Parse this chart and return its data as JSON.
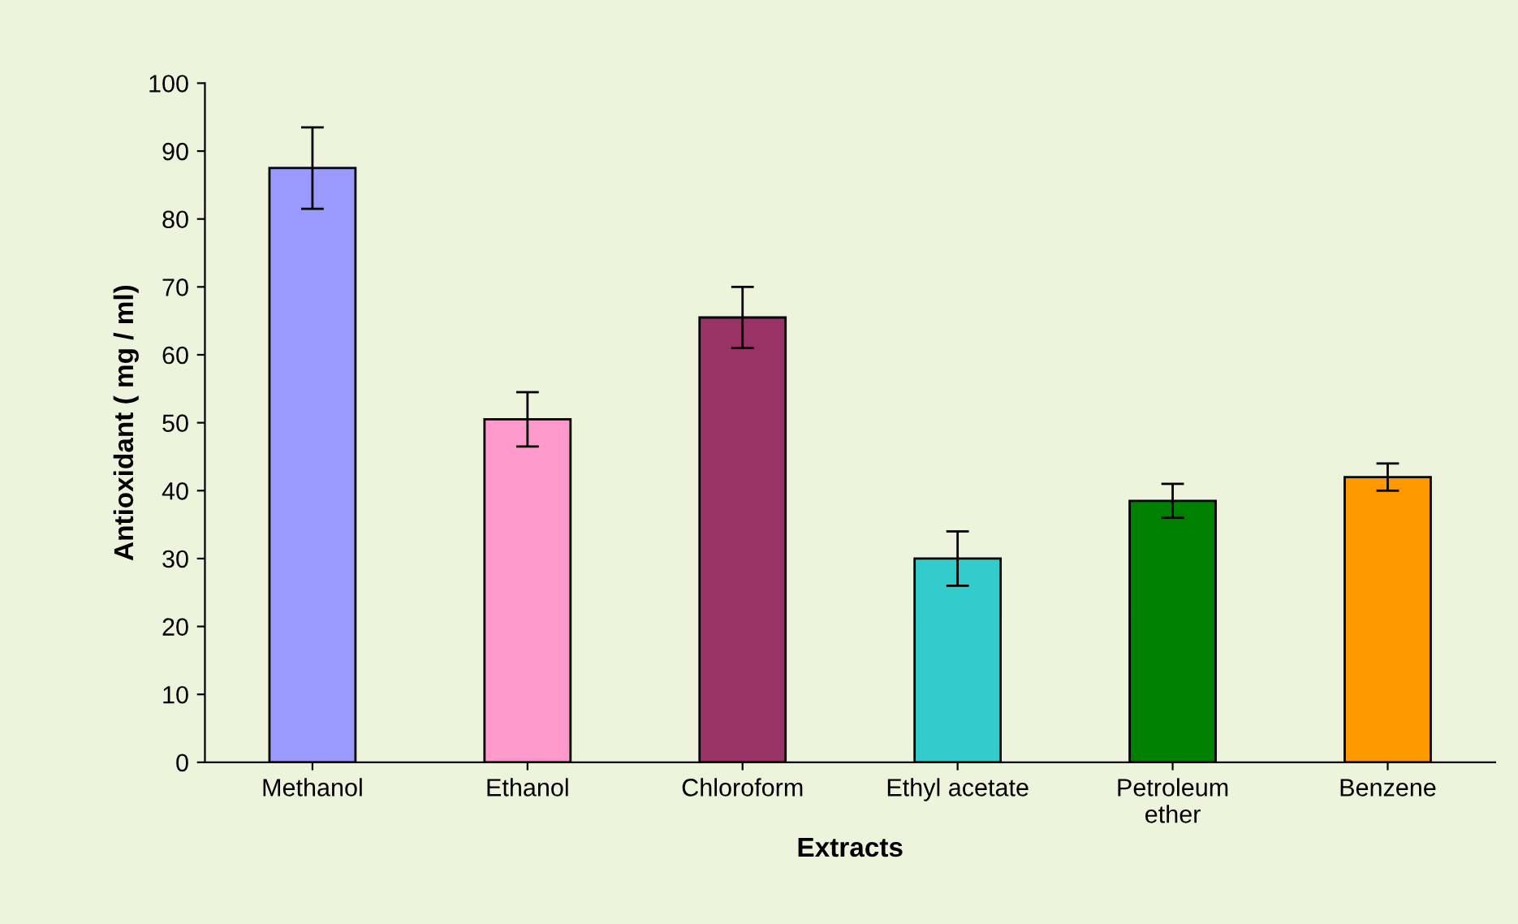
{
  "chart_data": {
    "type": "bar",
    "xlabel": "Extracts",
    "ylabel": "Antioxidant ( mg / ml)",
    "categories": [
      "Methanol",
      "Ethanol",
      "Chloroform",
      "Ethyl acetate",
      "Petroleum\nether",
      "Benzene"
    ],
    "values": [
      87.5,
      50.5,
      65.5,
      30,
      38.5,
      42
    ],
    "errors": [
      6,
      4,
      4.5,
      4,
      2.5,
      2
    ],
    "colors": [
      "#9999ff",
      "#ff99cc",
      "#993366",
      "#33cccc",
      "#008000",
      "#ff9900"
    ],
    "ylim": [
      0,
      100
    ],
    "yticks": [
      0,
      10,
      20,
      30,
      40,
      50,
      60,
      70,
      80,
      90,
      100
    ],
    "grid": false,
    "legend": false
  }
}
